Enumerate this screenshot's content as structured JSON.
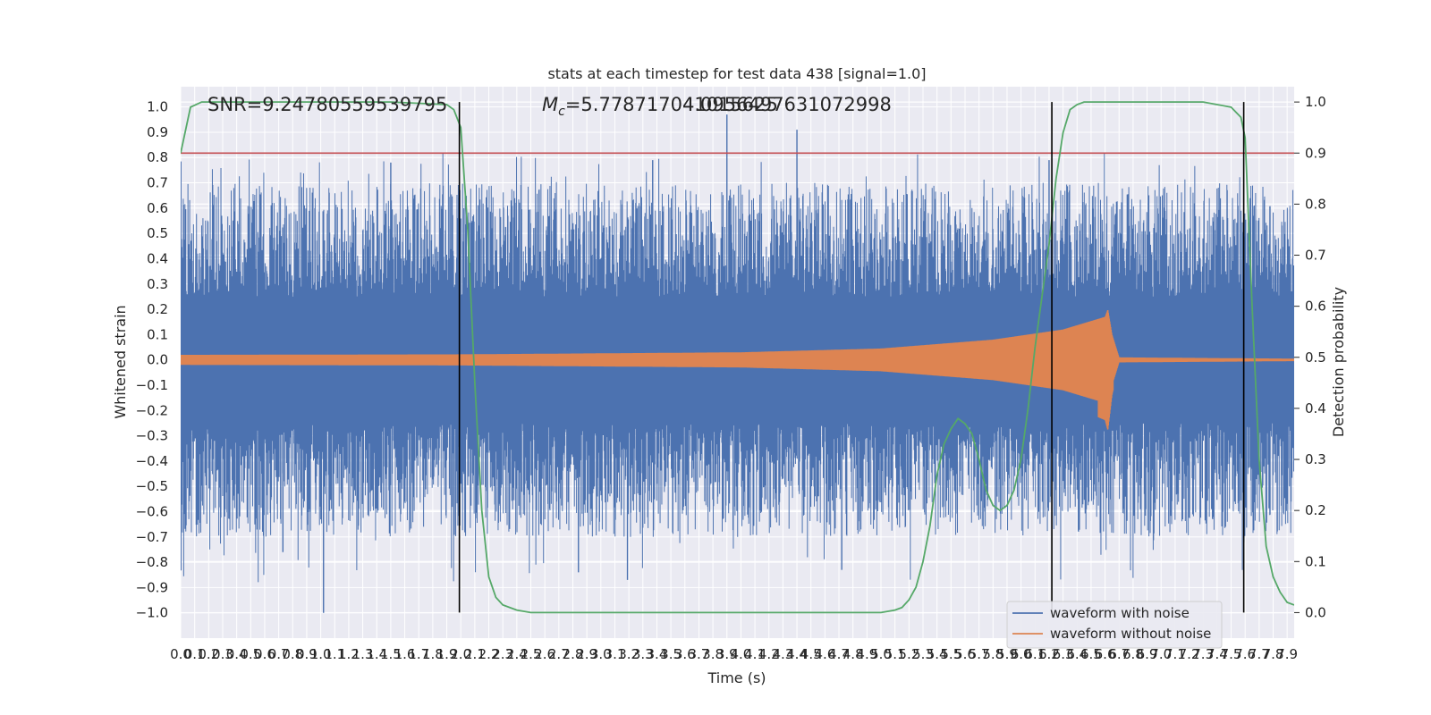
{
  "chart_data": {
    "type": "line",
    "title": "stats at each timestep for test data 438 [signal=1.0]",
    "xlabel": "Time (s)",
    "ylabel_left": "Whitened strain",
    "ylabel_right": "Detection probability",
    "xlim": [
      0.0,
      7.95
    ],
    "ylim_left": [
      -1.1,
      1.08
    ],
    "ylim_right": [
      -0.05,
      1.03
    ],
    "grid": true,
    "legend_position": "lower-right",
    "annotations": {
      "snr": "SNR=9.24780559539795",
      "mc_symbol": "M",
      "mc_subscript": "c",
      "mc_value": "=5.778717041015625",
      "overlap_text": "4.0956497631072998"
    },
    "x_ticks": [
      "0.0",
      "0.1",
      "0.2",
      "0.3",
      "0.4",
      "0.5",
      "0.6",
      "0.7",
      "0.8",
      "0.9",
      "1.0",
      "1.1",
      "1.2",
      "1.3",
      "1.4",
      "1.5",
      "1.6",
      "1.7",
      "1.8",
      "1.9",
      "2.0",
      "2.1",
      "2.2",
      "2.3",
      "2.4",
      "2.5",
      "2.6",
      "2.7",
      "2.8",
      "2.9",
      "3.0",
      "3.1",
      "3.2",
      "3.3",
      "3.4",
      "3.5",
      "3.6",
      "3.7",
      "3.8",
      "3.9",
      "4.0",
      "4.1",
      "4.2",
      "4.3",
      "4.4",
      "4.5",
      "4.6",
      "4.7",
      "4.8",
      "4.9",
      "5.0",
      "5.1",
      "5.2",
      "5.3",
      "5.4",
      "5.5",
      "5.6",
      "5.7",
      "5.8",
      "5.9",
      "6.0",
      "6.1",
      "6.2",
      "6.3",
      "6.4",
      "6.5",
      "6.6",
      "6.7",
      "6.8",
      "6.9",
      "7.0",
      "7.1",
      "7.2",
      "7.3",
      "7.4",
      "7.5",
      "7.6",
      "7.7",
      "7.8",
      "7.9"
    ],
    "y_ticks_left": [
      "1.0",
      "0.9",
      "0.8",
      "0.7",
      "0.6",
      "0.5",
      "0.4",
      "0.3",
      "0.2",
      "0.1",
      "0.0",
      "-0.1",
      "-0.2",
      "-0.3",
      "-0.4",
      "-0.5",
      "-0.6",
      "-0.7",
      "-0.8",
      "-0.9",
      "-1.0"
    ],
    "y_ticks_right": [
      "1.0",
      "0.9",
      "0.8",
      "0.7",
      "0.6",
      "0.5",
      "0.4",
      "0.3",
      "0.2",
      "0.1",
      "0.0"
    ],
    "threshold": {
      "value": 0.9,
      "axis": "right",
      "color": "#c44e52"
    },
    "vertical_markers_x": [
      1.99,
      6.22,
      7.59
    ],
    "series": [
      {
        "name": "waveform with noise",
        "color": "#4c72b0",
        "axis": "left",
        "envelope_core": [
          -0.22,
          0.22
        ],
        "peak_range": [
          -1.0,
          0.97
        ]
      },
      {
        "name": "waveform without noise",
        "color": "#dd8452",
        "axis": "left",
        "x": [
          0.0,
          2.0,
          4.0,
          5.0,
          5.8,
          6.3,
          6.6,
          6.62,
          6.65,
          6.7,
          7.95
        ],
        "amplitude": [
          0.02,
          0.022,
          0.03,
          0.045,
          0.08,
          0.12,
          0.17,
          0.2,
          0.1,
          0.01,
          0.005
        ]
      },
      {
        "name": "detection probability",
        "color": "#55a868",
        "axis": "right",
        "x": [
          0.0,
          0.07,
          0.15,
          0.3,
          0.6,
          1.0,
          1.5,
          1.9,
          1.95,
          2.0,
          2.05,
          2.1,
          2.15,
          2.2,
          2.25,
          2.3,
          2.4,
          2.5,
          2.8,
          3.5,
          4.5,
          5.0,
          5.1,
          5.15,
          5.2,
          5.25,
          5.3,
          5.35,
          5.4,
          5.45,
          5.5,
          5.55,
          5.6,
          5.65,
          5.7,
          5.75,
          5.8,
          5.85,
          5.9,
          5.95,
          6.0,
          6.05,
          6.1,
          6.15,
          6.2,
          6.25,
          6.3,
          6.35,
          6.4,
          6.45,
          6.5,
          6.6,
          7.0,
          7.3,
          7.5,
          7.57,
          7.6,
          7.65,
          7.7,
          7.75,
          7.8,
          7.85,
          7.9,
          7.95
        ],
        "y": [
          0.9,
          0.99,
          1.0,
          1.0,
          1.0,
          1.0,
          1.0,
          0.995,
          0.985,
          0.95,
          0.75,
          0.45,
          0.2,
          0.07,
          0.03,
          0.015,
          0.005,
          0.0,
          0.0,
          0.0,
          0.0,
          0.0,
          0.005,
          0.01,
          0.025,
          0.05,
          0.1,
          0.17,
          0.27,
          0.33,
          0.36,
          0.38,
          0.37,
          0.35,
          0.3,
          0.24,
          0.21,
          0.2,
          0.21,
          0.24,
          0.3,
          0.4,
          0.52,
          0.62,
          0.72,
          0.85,
          0.94,
          0.985,
          0.995,
          1.0,
          1.0,
          1.0,
          1.0,
          1.0,
          0.99,
          0.97,
          0.93,
          0.6,
          0.3,
          0.13,
          0.07,
          0.04,
          0.02,
          0.015
        ]
      }
    ],
    "legend": [
      "waveform with noise",
      "waveform without noise"
    ]
  }
}
